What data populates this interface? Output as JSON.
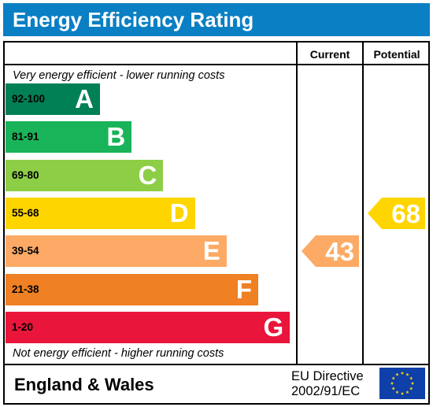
{
  "header": {
    "title": "Energy Efficiency Rating"
  },
  "columns": {
    "current": "Current",
    "potential": "Potential"
  },
  "notes": {
    "top": "Very energy efficient - lower running costs",
    "bottom": "Not energy efficient - higher running costs"
  },
  "footer": {
    "country": "England & Wales",
    "directive_line1": "EU Directive",
    "directive_line2": "2002/91/EC",
    "flag_icon": "eu-flag-icon"
  },
  "colors": {
    "header": "#0a7fc4",
    "A": "#008054",
    "B": "#19b459",
    "C": "#8dce46",
    "D": "#ffd500",
    "E": "#fcaa65",
    "F": "#ef8023",
    "G": "#e9153b"
  },
  "chart_data": {
    "type": "bar",
    "title": "Energy Efficiency Rating",
    "categories": [
      "92-100",
      "81-91",
      "69-80",
      "55-68",
      "39-54",
      "21-38",
      "1-20"
    ],
    "bands": [
      {
        "letter": "A",
        "range": "92-100",
        "color": "#008054"
      },
      {
        "letter": "B",
        "range": "81-91",
        "color": "#19b459"
      },
      {
        "letter": "C",
        "range": "69-80",
        "color": "#8dce46"
      },
      {
        "letter": "D",
        "range": "55-68",
        "color": "#ffd500"
      },
      {
        "letter": "E",
        "range": "39-54",
        "color": "#fcaa65"
      },
      {
        "letter": "F",
        "range": "21-38",
        "color": "#ef8023"
      },
      {
        "letter": "G",
        "range": "1-20",
        "color": "#e9153b"
      }
    ],
    "ratings": {
      "current": {
        "value": 43,
        "label": "43",
        "band": "E",
        "color": "#fcaa65"
      },
      "potential": {
        "value": 68,
        "label": "68",
        "band": "D",
        "color": "#ffd500"
      }
    }
  }
}
